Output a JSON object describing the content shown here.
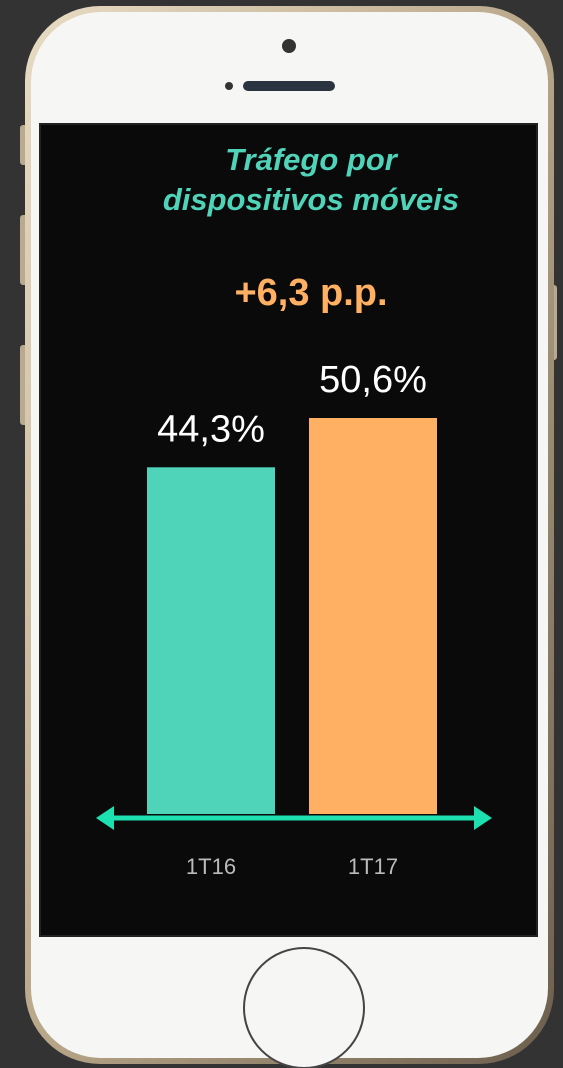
{
  "chart_data": {
    "type": "bar",
    "title": "Tráfego por dispositivos móveis",
    "annotation": "+6,3 p.p.",
    "categories": [
      "1T16",
      "1T17"
    ],
    "values": [
      44.3,
      50.6
    ],
    "value_labels": [
      "44,3%",
      "50,6%"
    ],
    "colors": [
      "#4fd3b9",
      "#ffb062"
    ]
  }
}
